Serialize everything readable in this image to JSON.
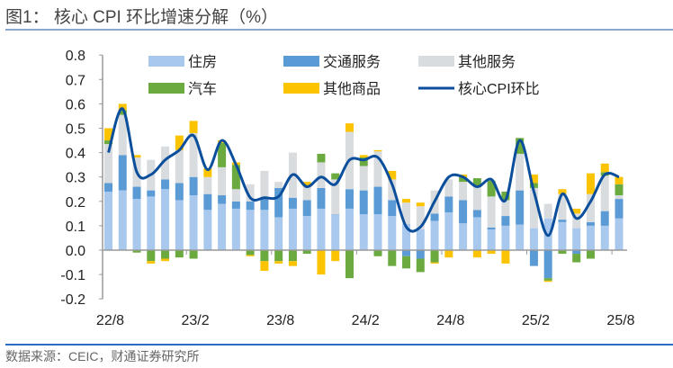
{
  "title": "图1： 核心 CPI 环比增速分解（%）",
  "source": "数据来源：CEIC，财通证券研究所",
  "chart_data": {
    "type": "bar",
    "stacked": true,
    "title": "核心 CPI 环比增速分解（%）",
    "xlabel": "",
    "ylabel": "",
    "ylim": [
      -0.2,
      0.8
    ],
    "yticks": [
      "0.8",
      "0.7",
      "0.6",
      "0.5",
      "0.4",
      "0.3",
      "0.2",
      "0.1",
      "0.0",
      "-0.1",
      "-0.2"
    ],
    "ytick_values": [
      0.8,
      0.7,
      0.6,
      0.5,
      0.4,
      0.3,
      0.2,
      0.1,
      0,
      -0.1,
      -0.2
    ],
    "categories": [
      "22/8",
      "22/9",
      "22/10",
      "22/11",
      "22/12",
      "23/1",
      "23/2",
      "23/3",
      "23/4",
      "23/5",
      "23/6",
      "23/7",
      "23/8",
      "23/9",
      "23/10",
      "23/11",
      "23/12",
      "24/1",
      "24/2",
      "24/3",
      "24/4",
      "24/5",
      "24/6",
      "24/7",
      "24/8",
      "24/9",
      "24/10",
      "24/11",
      "24/12",
      "25/1",
      "25/2",
      "25/3",
      "25/4",
      "25/5",
      "25/6",
      "25/7",
      "25/8"
    ],
    "xtick_labels": [
      {
        "index": 0,
        "label": "22/8"
      },
      {
        "index": 6,
        "label": "23/2"
      },
      {
        "index": 12,
        "label": "23/8"
      },
      {
        "index": 18,
        "label": "24/2"
      },
      {
        "index": 24,
        "label": "24/8"
      },
      {
        "index": 30,
        "label": "25/2"
      },
      {
        "index": 36,
        "label": "25/8"
      }
    ],
    "legend_position": "top",
    "series": [
      {
        "name": "住房",
        "kind": "bar",
        "color": "#a9c8ee",
        "values": [
          0.24,
          0.245,
          0.21,
          0.22,
          0.25,
          0.205,
          0.225,
          0.165,
          0.19,
          0.17,
          0.165,
          0.165,
          0.135,
          0.17,
          0.14,
          0.17,
          0.145,
          0.17,
          0.147,
          0.147,
          0.14,
          0.107,
          0.085,
          0.12,
          0.155,
          0.11,
          0.135,
          0.085,
          0.1,
          0.105,
          0.09,
          0.13,
          0.115,
          0.09,
          0.1,
          0.1,
          0.13
        ]
      },
      {
        "name": "交通服务",
        "kind": "bar",
        "color": "#5b9bd5",
        "values": [
          0.035,
          0.145,
          0.05,
          0.025,
          0.04,
          0.07,
          0.075,
          0.065,
          0.035,
          0.03,
          0.035,
          0.05,
          0.12,
          0.045,
          0.065,
          0.085,
          0.002,
          0.08,
          0.098,
          0.113,
          0.065,
          -0.025,
          -0.035,
          0.03,
          0.065,
          0.095,
          0.03,
          0.008,
          0.04,
          0.14,
          -0.065,
          -0.115,
          0.01,
          -0.015,
          0.015,
          0.06,
          0.08
        ]
      },
      {
        "name": "其他服务",
        "kind": "bar",
        "color": "#d9dcdf",
        "values": [
          0.16,
          0.165,
          0.12,
          0.125,
          0.135,
          0.135,
          0.18,
          0.07,
          0.115,
          0.05,
          0.07,
          0.11,
          0.025,
          0.185,
          0.055,
          0.105,
          0.143,
          0.235,
          0.1,
          0.145,
          0.085,
          0.088,
          0.095,
          0.095,
          0.07,
          0.075,
          0.095,
          0.127,
          0.065,
          0.15,
          0.165,
          0.06,
          0.105,
          0.06,
          0.115,
          0.145,
          0.015
        ]
      },
      {
        "name": "汽车",
        "kind": "bar",
        "color": "#6aaa3f",
        "values": [
          0.015,
          0.02,
          -0.01,
          -0.045,
          -0.035,
          -0.03,
          -0.035,
          0.0,
          0.1,
          0.1,
          -0.02,
          -0.045,
          -0.045,
          -0.045,
          -0.015,
          0.035,
          0.025,
          -0.115,
          0.035,
          -0.025,
          -0.065,
          -0.05,
          -0.055,
          -0.05,
          0.0,
          0.02,
          0.035,
          0.065,
          0.035,
          0.065,
          0.02,
          -0.01,
          -0.015,
          -0.035,
          -0.035,
          0.015,
          0.045
        ]
      },
      {
        "name": "其他商品",
        "kind": "bar",
        "color": "#fbc300",
        "values": [
          0.05,
          0.025,
          0.01,
          -0.01,
          -0.01,
          0.06,
          0.05,
          0.035,
          0.01,
          0.01,
          -0.005,
          -0.04,
          -0.01,
          -0.02,
          0.02,
          -0.1,
          -0.045,
          0.035,
          0.01,
          0.005,
          0.035,
          0.015,
          0.015,
          -0.005,
          -0.03,
          0.01,
          -0.03,
          -0.015,
          -0.055,
          0.0,
          0.035,
          -0.005,
          0.02,
          0.02,
          0.085,
          0.035,
          0.03
        ]
      },
      {
        "name": "核心CPI环比",
        "kind": "line",
        "color": "#0b4f9c",
        "values": [
          0.4,
          0.58,
          0.32,
          0.31,
          0.37,
          0.41,
          0.47,
          0.33,
          0.45,
          0.35,
          0.215,
          0.215,
          0.22,
          0.31,
          0.26,
          0.3,
          0.27,
          0.37,
          0.37,
          0.38,
          0.27,
          0.095,
          0.095,
          0.2,
          0.3,
          0.3,
          0.26,
          0.29,
          0.205,
          0.45,
          0.24,
          0.06,
          0.23,
          0.13,
          0.2,
          0.31,
          0.3
        ]
      }
    ]
  }
}
